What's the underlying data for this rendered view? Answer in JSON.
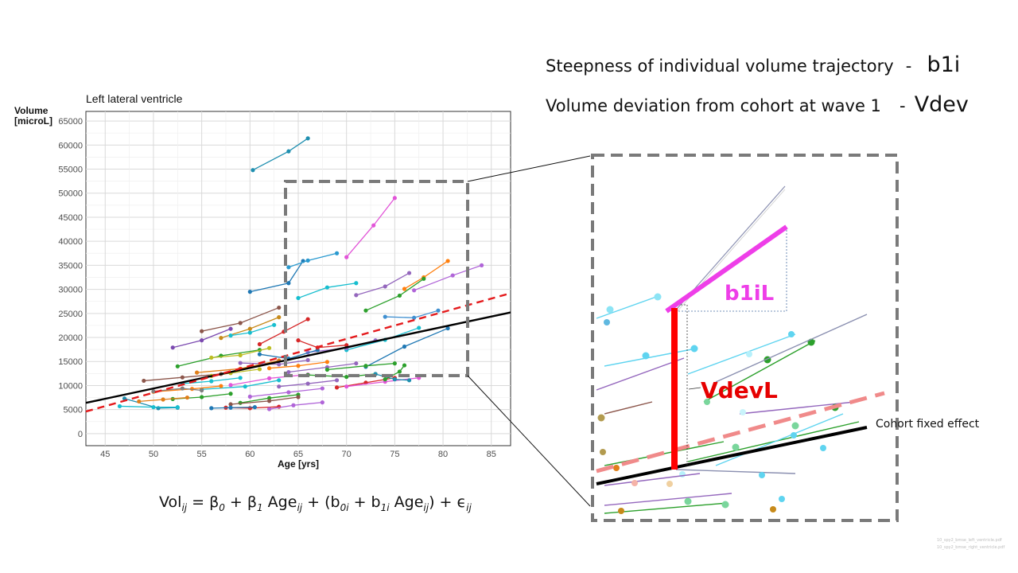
{
  "header": {
    "line1_text": "Steepness of individual volume trajectory",
    "line1_sep": "-",
    "line1_symbol": "b1i",
    "line2_text": "Volume deviation from cohort at wave 1",
    "line2_sep": "-",
    "line2_symbol": "Vdev"
  },
  "formula": {
    "lhs": "Vol",
    "lhs_sub": "ij",
    "eq": " = β",
    "b0_sub": "0",
    "plus_b1": " + β",
    "b1_sub": "1",
    "age1": " Age",
    "age1_sub": "ij",
    "open": " + (b",
    "b0i_sub": "0i",
    "plus_b1i": " + b",
    "b1i_sub": "1i",
    "age2": " Age",
    "age2_sub": "ij",
    "close": ") + ϵ",
    "eps_sub": "ij"
  },
  "zoom": {
    "b1i_label": "b1iL",
    "vdev_label": "VdevL",
    "cohort_label": "Cohort fixed effect"
  },
  "file_refs": [
    "10_spy2_bmse_left_ventricle.pdf",
    "10_spy2_bmse_right_ventricle.pdf"
  ],
  "chart_data": {
    "type": "line",
    "title": "Left lateral ventricle",
    "xlabel": "Age [yrs]",
    "ylabel": "Volume [microL]",
    "xlim": [
      43,
      87
    ],
    "ylim": [
      -2500,
      67000
    ],
    "xticks": [
      45,
      50,
      55,
      60,
      65,
      70,
      75,
      80,
      85
    ],
    "yticks": [
      0,
      5000,
      10000,
      15000,
      20000,
      25000,
      30000,
      35000,
      40000,
      45000,
      50000,
      55000,
      60000,
      65000
    ],
    "grid": true,
    "cohort_fixed_effect": {
      "x": [
        43,
        87
      ],
      "y": [
        6400,
        25200
      ],
      "color": "#000000"
    },
    "population_trend": {
      "x": [
        43,
        87
      ],
      "y": [
        4600,
        29200
      ],
      "color": "#e41a1c"
    },
    "series": [
      {
        "color": "#1f8fb0",
        "x": [
          60.3,
          64.0,
          66.0
        ],
        "y": [
          54800,
          58700,
          61400
        ]
      },
      {
        "color": "#e255d8",
        "x": [
          70.0,
          72.8,
          75.0
        ],
        "y": [
          36700,
          43300,
          49000
        ]
      },
      {
        "color": "#1f78b4",
        "x": [
          60.0,
          64.0,
          65.5
        ],
        "y": [
          29500,
          31300,
          35900
        ]
      },
      {
        "color": "#2a9ad0",
        "x": [
          64.0,
          66.0,
          69.0
        ],
        "y": [
          34600,
          36000,
          37500
        ]
      },
      {
        "color": "#17becf",
        "x": [
          65.0,
          68.0,
          71.0
        ],
        "y": [
          28200,
          30400,
          31300
        ]
      },
      {
        "color": "#9467bd",
        "x": [
          71.0,
          74.0,
          76.5
        ],
        "y": [
          28800,
          30600,
          33400
        ]
      },
      {
        "color": "#ff7f0e",
        "x": [
          76.0,
          78.0,
          80.5
        ],
        "y": [
          30100,
          32500,
          35900
        ]
      },
      {
        "color": "#b065d8",
        "x": [
          77.0,
          81.0,
          84.0
        ],
        "y": [
          29800,
          32900,
          35000
        ]
      },
      {
        "color": "#2ca02c",
        "x": [
          72.0,
          75.5,
          78.0
        ],
        "y": [
          25600,
          28700,
          32200
        ]
      },
      {
        "color": "#8c564b",
        "x": [
          55.0,
          59.0,
          63.0
        ],
        "y": [
          21300,
          23000,
          26200
        ]
      },
      {
        "color": "#7b4ab0",
        "x": [
          52.0,
          55.0,
          58.0
        ],
        "y": [
          17900,
          19400,
          21800
        ]
      },
      {
        "color": "#c78a1a",
        "x": [
          57.0,
          60.0,
          63.0
        ],
        "y": [
          19900,
          21800,
          24200
        ]
      },
      {
        "color": "#d62728",
        "x": [
          61.0,
          63.5,
          66.0
        ],
        "y": [
          18600,
          21200,
          23800
        ]
      },
      {
        "color": "#3f8fd0",
        "x": [
          74.0,
          77.0,
          79.5
        ],
        "y": [
          24300,
          24100,
          25600
        ]
      },
      {
        "color": "#17becf",
        "x": [
          70.0,
          74.0,
          77.5
        ],
        "y": [
          17400,
          19500,
          22000
        ]
      },
      {
        "color": "#9b6fd0",
        "x": [
          66.0,
          70.0,
          73.0
        ],
        "y": [
          16900,
          17800,
          19400
        ]
      },
      {
        "color": "#2ca02c",
        "x": [
          52.5,
          57.0,
          61.0
        ],
        "y": [
          14000,
          16200,
          17400
        ]
      },
      {
        "color": "#e07f1a",
        "x": [
          54.5,
          59.0,
          63.0
        ],
        "y": [
          12700,
          13500,
          15200
        ]
      },
      {
        "color": "#e255d8",
        "x": [
          58.0,
          62.0,
          66.0
        ],
        "y": [
          10100,
          11500,
          12300
        ]
      },
      {
        "color": "#1f78b4",
        "x": [
          61.0,
          64.0,
          67.0
        ],
        "y": [
          16500,
          15600,
          17400
        ]
      },
      {
        "color": "#bcbd22",
        "x": [
          56.0,
          59.0,
          62.0
        ],
        "y": [
          15800,
          16300,
          17800
        ]
      },
      {
        "color": "#9467bd",
        "x": [
          64.0,
          68.0,
          71.0
        ],
        "y": [
          12800,
          13800,
          14600
        ]
      },
      {
        "color": "#8c564b",
        "x": [
          49.0,
          53.0,
          57.0
        ],
        "y": [
          11000,
          11700,
          12400
        ]
      },
      {
        "color": "#17becf",
        "x": [
          55.0,
          59.5,
          63.0
        ],
        "y": [
          9200,
          9800,
          11100
        ]
      },
      {
        "color": "#d62728",
        "x": [
          69.0,
          72.0,
          75.0
        ],
        "y": [
          9600,
          10600,
          11600
        ]
      },
      {
        "color": "#2ca02c",
        "x": [
          66.0,
          70.0,
          73.0
        ],
        "y": [
          12200,
          11800,
          12400
        ]
      },
      {
        "color": "#ff7f0e",
        "x": [
          50.0,
          54.0,
          57.0
        ],
        "y": [
          8700,
          9300,
          9900
        ]
      },
      {
        "color": "#b065d8",
        "x": [
          60.0,
          64.0,
          67.5
        ],
        "y": [
          7700,
          8600,
          9400
        ]
      },
      {
        "color": "#1f8fb0",
        "x": [
          47.0,
          50.5,
          52.5
        ],
        "y": [
          7300,
          5300,
          5400
        ]
      },
      {
        "color": "#2ca02c",
        "x": [
          59.0,
          62.0,
          65.0
        ],
        "y": [
          6400,
          7400,
          8100
        ]
      },
      {
        "color": "#d62728",
        "x": [
          57.5,
          60.0,
          63.0
        ],
        "y": [
          5400,
          5300,
          5600
        ]
      },
      {
        "color": "#8c564b",
        "x": [
          58.0,
          62.0,
          65.0
        ],
        "y": [
          6100,
          6800,
          7600
        ]
      },
      {
        "color": "#b065d8",
        "x": [
          62.0,
          64.5,
          67.5
        ],
        "y": [
          5100,
          5900,
          6500
        ]
      },
      {
        "color": "#17becf",
        "x": [
          46.5,
          50.0,
          52.5
        ],
        "y": [
          5700,
          5500,
          5500
        ]
      },
      {
        "color": "#1f78b4",
        "x": [
          56.0,
          58.0,
          60.5
        ],
        "y": [
          5300,
          5400,
          5500
        ]
      },
      {
        "color": "#e255d8",
        "x": [
          70.0,
          74.0,
          77.5
        ],
        "y": [
          9800,
          10800,
          11600
        ]
      },
      {
        "color": "#1f78b4",
        "x": [
          72.0,
          76.0,
          80.5
        ],
        "y": [
          13900,
          18100,
          21900
        ]
      },
      {
        "color": "#7f7f7f",
        "x": [
          50.0,
          53.0,
          55.0
        ],
        "y": [
          8800,
          9400,
          9000
        ]
      },
      {
        "color": "#2ca02c",
        "x": [
          68.0,
          72.0,
          75.0
        ],
        "y": [
          13300,
          14100,
          14600
        ]
      },
      {
        "color": "#9467bd",
        "x": [
          59.0,
          63.0,
          66.0
        ],
        "y": [
          14700,
          14400,
          15300
        ]
      },
      {
        "color": "#17becf",
        "x": [
          53.0,
          56.0,
          59.0
        ],
        "y": [
          10400,
          10900,
          11600
        ]
      },
      {
        "color": "#ff7f0e",
        "x": [
          62.0,
          65.0,
          68.0
        ],
        "y": [
          13600,
          14100,
          14900
        ]
      },
      {
        "color": "#bcbd22",
        "x": [
          56.0,
          58.0,
          61.0
        ],
        "y": [
          12000,
          12600,
          13400
        ]
      },
      {
        "color": "#d62728",
        "x": [
          65.0,
          67.0,
          70.0
        ],
        "y": [
          19400,
          17900,
          18400
        ]
      },
      {
        "color": "#1f8fb0",
        "x": [
          73.0,
          75.0,
          76.5
        ],
        "y": [
          12400,
          11300,
          11100
        ]
      },
      {
        "color": "#2ca02c",
        "x": [
          52.0,
          55.0,
          58.0
        ],
        "y": [
          7200,
          7600,
          8300
        ]
      },
      {
        "color": "#9467bd",
        "x": [
          63.0,
          66.0,
          69.0
        ],
        "y": [
          9800,
          10400,
          11100
        ]
      },
      {
        "color": "#e07f1a",
        "x": [
          48.5,
          51.0,
          53.5
        ],
        "y": [
          6700,
          7100,
          7500
        ]
      },
      {
        "color": "#17becf",
        "x": [
          58.0,
          60.0,
          62.5
        ],
        "y": [
          20400,
          21000,
          22600
        ]
      },
      {
        "color": "#2ca02c",
        "x": [
          74.0,
          75.5,
          76.0
        ],
        "y": [
          11300,
          12900,
          14200
        ]
      }
    ]
  }
}
